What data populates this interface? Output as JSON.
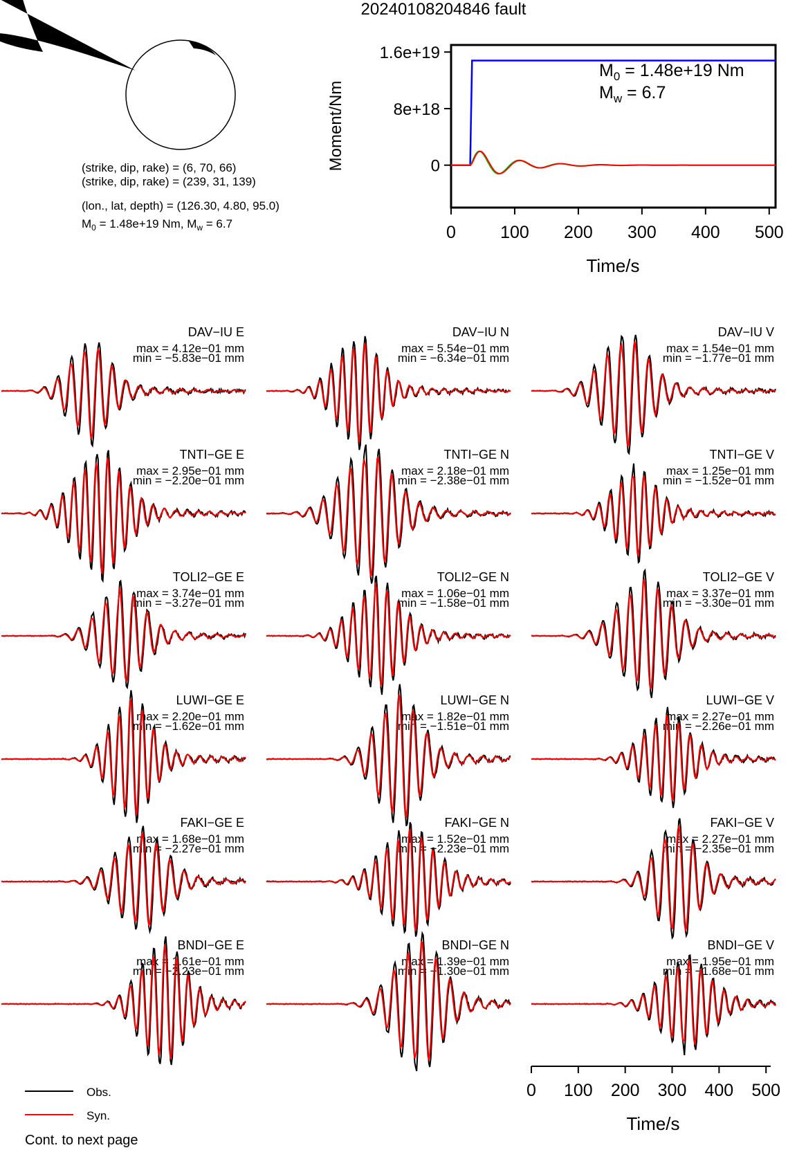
{
  "header": {
    "title": "20240108204846 fault"
  },
  "mechanism": {
    "np1": "(strike, dip, rake) = (6, 70, 66)",
    "np2": "(strike, dip, rake) = (239, 31, 139)",
    "location": "(lon., lat, depth) = (126.30, 4.80, 95.0)",
    "m0_text": "1.48e+19 Nm, M",
    "mw_text": " = 6.7"
  },
  "stf": {
    "ylabel": "Moment/Nm",
    "xlabel": "Time/s",
    "yticks": [
      "1.6e+19",
      "8e+18",
      "0"
    ],
    "xticks": [
      "0",
      "100",
      "200",
      "300",
      "400",
      "500"
    ],
    "m0_annot": " = 1.48e+19 Nm",
    "mw_annot": " = 6.7",
    "colors": {
      "cumulative": "#0000ff",
      "rate_a": "#ff0000",
      "rate_b": "#00cc00"
    }
  },
  "waveforms": {
    "xlabel": "Time/s",
    "xticks": [
      "0",
      "100",
      "200",
      "300",
      "400",
      "500"
    ],
    "colors": {
      "obs": "#000000",
      "syn": "#ff0000"
    },
    "panels": [
      {
        "station": "DAV−IU E",
        "max": "max = 4.12e−01 mm",
        "min": "min = −5.83e−01 mm"
      },
      {
        "station": "DAV−IU N",
        "max": "max = 5.54e−01 mm",
        "min": "min = −6.34e−01 mm"
      },
      {
        "station": "DAV−IU V",
        "max": "max = 1.54e−01 mm",
        "min": "min = −1.77e−01 mm"
      },
      {
        "station": "TNTI−GE E",
        "max": "max = 2.95e−01 mm",
        "min": "min = −2.20e−01 mm"
      },
      {
        "station": "TNTI−GE N",
        "max": "max = 2.18e−01 mm",
        "min": "min = −2.38e−01 mm"
      },
      {
        "station": "TNTI−GE V",
        "max": "max = 1.25e−01 mm",
        "min": "min = −1.52e−01 mm"
      },
      {
        "station": "TOLI2−GE E",
        "max": "max = 3.74e−01 mm",
        "min": "min = −3.27e−01 mm"
      },
      {
        "station": "TOLI2−GE N",
        "max": "max = 1.06e−01 mm",
        "min": "min = −1.58e−01 mm"
      },
      {
        "station": "TOLI2−GE V",
        "max": "max = 3.37e−01 mm",
        "min": "min = −3.30e−01 mm"
      },
      {
        "station": "LUWI−GE E",
        "max": "max = 2.20e−01 mm",
        "min": "min = −1.62e−01 mm"
      },
      {
        "station": "LUWI−GE N",
        "max": "max = 1.82e−01 mm",
        "min": "min = −1.51e−01 mm"
      },
      {
        "station": "LUWI−GE V",
        "max": "max = 2.27e−01 mm",
        "min": "min = −2.26e−01 mm"
      },
      {
        "station": "FAKI−GE E",
        "max": "max = 1.68e−01 mm",
        "min": "min = −2.27e−01 mm"
      },
      {
        "station": "FAKI−GE N",
        "max": "max = 1.52e−01 mm",
        "min": "min = −2.23e−01 mm"
      },
      {
        "station": "FAKI−GE V",
        "max": "max = 2.27e−01 mm",
        "min": "min = −2.35e−01 mm"
      },
      {
        "station": "BNDI−GE E",
        "max": "max = 1.61e−01 mm",
        "min": "min = −2.23e−01 mm"
      },
      {
        "station": "BNDI−GE N",
        "max": "max = 1.39e−01 mm",
        "min": "min = −1.30e−01 mm"
      },
      {
        "station": "BNDI−GE V",
        "max": "max = 1.95e−01 mm",
        "min": "min = −1.68e−01 mm"
      }
    ]
  },
  "legend": {
    "obs": "Obs.",
    "syn": "Syn.",
    "footer": "Cont. to next page"
  },
  "chart_data": [
    {
      "type": "line",
      "ylabel": "Moment/Nm",
      "xlabel": "Time/s",
      "xlim": [
        0,
        510
      ],
      "ylim": [
        -6e+18,
        1.7e+19
      ],
      "series": [
        {
          "values_x": [
            0,
            30,
            33,
            510
          ],
          "values_y": [
            0,
            0,
            1.48e+19,
            1.48e+19
          ]
        }
      ]
    },
    {
      "type": "line",
      "xlabel": "Time/s",
      "xlim": [
        0,
        510
      ],
      "series": [
        {
          "name": "Obs."
        },
        {
          "name": "Syn."
        }
      ]
    }
  ]
}
